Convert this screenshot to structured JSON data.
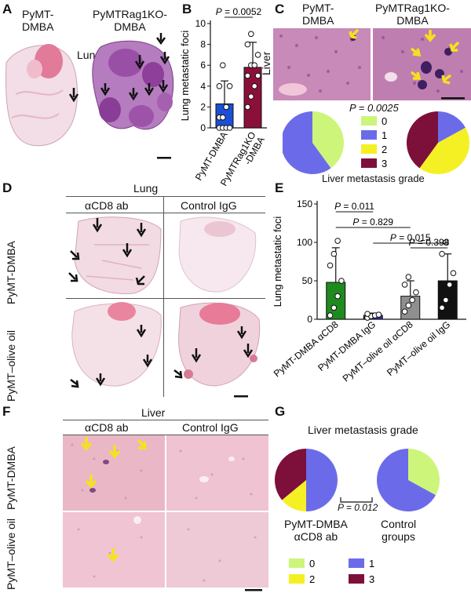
{
  "panels": {
    "A": {
      "label": "A",
      "group1": "PyMT-\nDMBA",
      "group2": "PyMTRag1KO-\nDMBA",
      "tissue": "Lung"
    },
    "B": {
      "label": "B",
      "pvalue": "P = 0.0052"
    },
    "C": {
      "label": "C",
      "group1": "PyMT-\nDMBA",
      "group2": "PyMTRag1KO-\nDMBA",
      "tissue": "Liver",
      "pvalue": "P = 0.0025",
      "legend": [
        "0",
        "1",
        "2",
        "3"
      ],
      "caption": "Liver metastasis grade"
    },
    "D": {
      "label": "D",
      "tissue": "Lung",
      "col1": "αCD8 ab",
      "col2": "Control IgG",
      "row1": "PyMT-DMBA",
      "row2": "PyMT–olive oil"
    },
    "E": {
      "label": "E"
    },
    "F": {
      "label": "F",
      "tissue": "Liver",
      "col1": "αCD8 ab",
      "col2": "Control IgG",
      "row1": "PyMT-DMBA",
      "row2": "PyMT–olive oil"
    },
    "G": {
      "label": "G",
      "title": "Liver metastasis grade",
      "group1": "PyMT-DMBA\nαCD8 ab",
      "group2": "Control\ngroups",
      "pvalue": "P = 0.012",
      "legend": [
        "0",
        "1",
        "2",
        "3"
      ]
    }
  },
  "colors": {
    "grade0": "#cdf57a",
    "grade1": "#6b6bea",
    "grade2": "#f5f024",
    "grade3": "#7d0f3b",
    "blue_bar": "#1a4fd6",
    "maroon_bar": "#8b1039",
    "green_bar": "#1f8a1f",
    "navy_bar": "#2a2aa8",
    "gray_bar": "#8f8f8f",
    "black_bar": "#111111",
    "arrow_yellow": "#f5e21b"
  },
  "chart_data": [
    {
      "id": "B",
      "type": "bar",
      "ylabel": "Lung metastatic foci",
      "ylim": [
        0,
        10
      ],
      "yticks": [
        0,
        2,
        4,
        6,
        8,
        10
      ],
      "categories": [
        "PyMT-DMBA",
        "PyMTRag1KO\n-DMBA"
      ],
      "values": [
        2.3,
        5.8
      ],
      "errors": [
        2.2,
        2.4
      ],
      "points": [
        [
          0,
          0,
          0,
          0,
          1,
          1,
          2,
          4,
          4,
          6
        ],
        [
          2,
          3,
          4,
          5,
          5,
          6,
          6,
          7,
          8,
          9
        ]
      ],
      "comparisons": [
        {
          "text": "P = 0.0052"
        }
      ]
    },
    {
      "id": "E",
      "type": "bar",
      "ylabel": "Lung metastatic foci",
      "ylim": [
        0,
        150
      ],
      "yticks": [
        0,
        50,
        100,
        150
      ],
      "categories": [
        "PyMT-DMBA αCD8",
        "PyMT-DMBA IgG",
        "PyMT–olive oil αCD8",
        "PyMT–olive oil IgG"
      ],
      "values": [
        48,
        5,
        30,
        50
      ],
      "errors": [
        45,
        3,
        20,
        35
      ],
      "points": [
        [
          5,
          15,
          30,
          50,
          70,
          85,
          102
        ],
        [
          2,
          4,
          5,
          6,
          7
        ],
        [
          10,
          18,
          25,
          35,
          45,
          55
        ],
        [
          15,
          25,
          45,
          60,
          85,
          100
        ]
      ],
      "comparisons": [
        {
          "text": "P = 0.011"
        },
        {
          "text": "P = 0.829"
        },
        {
          "text": "P = 0.015"
        },
        {
          "text": "P = 0.398"
        }
      ]
    },
    {
      "id": "C-pie-left",
      "type": "pie",
      "labels": [
        "0",
        "1",
        "2",
        "3"
      ],
      "values": [
        40,
        60,
        0,
        0
      ]
    },
    {
      "id": "C-pie-right",
      "type": "pie",
      "labels": [
        "0",
        "1",
        "2",
        "3"
      ],
      "values": [
        0,
        17,
        43,
        40
      ]
    },
    {
      "id": "G-pie-left",
      "type": "pie",
      "labels": [
        "0",
        "1",
        "2",
        "3"
      ],
      "values": [
        0,
        50,
        14,
        36
      ]
    },
    {
      "id": "G-pie-right",
      "type": "pie",
      "labels": [
        "0",
        "1",
        "2",
        "3"
      ],
      "values": [
        33,
        67,
        0,
        0
      ]
    }
  ]
}
